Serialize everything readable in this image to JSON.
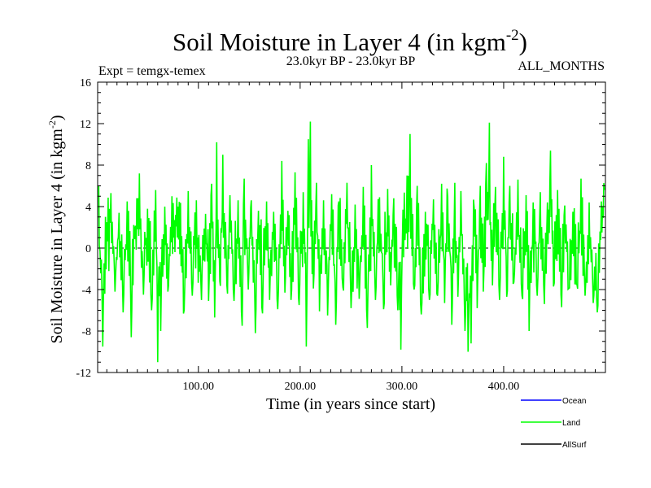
{
  "chart_data": {
    "type": "line",
    "title": "Soil Moisture in Layer 4 (in kgm",
    "title_sup": "-2",
    "title_close": ")",
    "subtitle": "23.0kyr BP - 23.0kyr BP",
    "expt_label": "Expt = temgx-temex",
    "period_label": "ALL_MONTHS",
    "xlabel": "Time (in years since start)",
    "ylabel": "Soil Moisture in Layer 4 (in kgm",
    "ylabel_sup": "-2",
    "ylabel_close": ")",
    "xlim": [
      1,
      500
    ],
    "ylim": [
      -12,
      16
    ],
    "xticks": [
      100,
      200,
      300,
      400
    ],
    "xtick_labels": [
      "100.00",
      "200.00",
      "300.00",
      "400.00"
    ],
    "yticks": [
      -12,
      -8,
      -4,
      0,
      4,
      8,
      12,
      16
    ],
    "ytick_labels": [
      "-12",
      "-8",
      "-4",
      "0",
      "4",
      "8",
      "12",
      "16"
    ],
    "zero_line": 0,
    "series": [
      {
        "name": "Ocean",
        "color": "#0000ff",
        "values": []
      },
      {
        "name": "Land",
        "color": "#00ff00",
        "peak_points": [
          [
            2,
            6.0
          ],
          [
            6,
            -9.5
          ],
          [
            10,
            2.5
          ],
          [
            14,
            5.3
          ],
          [
            18,
            -4.2
          ],
          [
            22,
            3.4
          ],
          [
            26,
            -6.2
          ],
          [
            30,
            4.5
          ],
          [
            34,
            -8.6
          ],
          [
            37,
            2.0
          ],
          [
            42,
            7.2
          ],
          [
            46,
            -4.5
          ],
          [
            50,
            3.8
          ],
          [
            54,
            -6.0
          ],
          [
            58,
            5.6
          ],
          [
            60,
            -11.0
          ],
          [
            63,
            -8.0
          ],
          [
            67,
            4.0
          ],
          [
            70,
            -4.2
          ],
          [
            74,
            5.0
          ],
          [
            80,
            4.0
          ],
          [
            86,
            -6.0
          ],
          [
            90,
            5.5
          ],
          [
            94,
            -4.6
          ],
          [
            98,
            4.6
          ],
          [
            103,
            -5.0
          ],
          [
            107,
            3.3
          ],
          [
            110,
            -5.1
          ],
          [
            113,
            6.2
          ],
          [
            116,
            -6.7
          ],
          [
            118,
            10.2
          ],
          [
            121,
            -3.2
          ],
          [
            124,
            9.0
          ],
          [
            128,
            -3.6
          ],
          [
            131,
            5.1
          ],
          [
            135,
            -5.1
          ],
          [
            139,
            4.6
          ],
          [
            143,
            -7.5
          ],
          [
            145,
            6.7
          ],
          [
            149,
            -4.0
          ],
          [
            152,
            4.6
          ],
          [
            156,
            -8.2
          ],
          [
            159,
            3.6
          ],
          [
            163,
            -6.3
          ],
          [
            167,
            4.5
          ],
          [
            170,
            -5.0
          ],
          [
            174,
            3.5
          ],
          [
            178,
            -5.9
          ],
          [
            182,
            8.4
          ],
          [
            185,
            -4.3
          ],
          [
            188,
            3.6
          ],
          [
            191,
            -5.0
          ],
          [
            195,
            7.3
          ],
          [
            199,
            -5.5
          ],
          [
            203,
            5.4
          ],
          [
            206,
            -9.5
          ],
          [
            208,
            10.5
          ],
          [
            210,
            12.2
          ],
          [
            213,
            -3.9
          ],
          [
            216,
            6.3
          ],
          [
            219,
            -6.1
          ],
          [
            223,
            4.6
          ],
          [
            227,
            -6.5
          ],
          [
            231,
            5.2
          ],
          [
            235,
            -7.4
          ],
          [
            238,
            4.5
          ],
          [
            242,
            -3.8
          ],
          [
            246,
            6.3
          ],
          [
            250,
            -5.8
          ],
          [
            254,
            4.2
          ],
          [
            258,
            -4.9
          ],
          [
            262,
            5.9
          ],
          [
            266,
            -7.7
          ],
          [
            270,
            8.0
          ],
          [
            274,
            -5.0
          ],
          [
            278,
            4.9
          ],
          [
            282,
            -5.9
          ],
          [
            286,
            5.7
          ],
          [
            289,
            -3.6
          ],
          [
            292,
            4.8
          ],
          [
            296,
            -6.0
          ],
          [
            299,
            -9.8
          ],
          [
            301,
            3.7
          ],
          [
            305,
            7.0
          ],
          [
            308,
            11.0
          ],
          [
            312,
            -4.0
          ],
          [
            315,
            6.0
          ],
          [
            319,
            -6.4
          ],
          [
            323,
            3.5
          ],
          [
            327,
            -5.0
          ],
          [
            331,
            4.7
          ],
          [
            335,
            -4.6
          ],
          [
            339,
            6.2
          ],
          [
            342,
            -5.3
          ],
          [
            345,
            4.9
          ],
          [
            349,
            -7.4
          ],
          [
            352,
            6.3
          ],
          [
            355,
            -4.7
          ],
          [
            358,
            5.5
          ],
          [
            362,
            -8.0
          ],
          [
            365,
            -10.0
          ],
          [
            368,
            -9.2
          ],
          [
            371,
            3.9
          ],
          [
            374,
            -5.8
          ],
          [
            377,
            6.0
          ],
          [
            380,
            -4.2
          ],
          [
            383,
            8.2
          ],
          [
            386,
            12.1
          ],
          [
            389,
            -3.6
          ],
          [
            392,
            5.9
          ],
          [
            396,
            -5.0
          ],
          [
            400,
            8.8
          ],
          [
            403,
            -4.7
          ],
          [
            406,
            6.0
          ],
          [
            410,
            -3.3
          ],
          [
            414,
            6.6
          ],
          [
            418,
            -4.6
          ],
          [
            422,
            5.1
          ],
          [
            425,
            -8.0
          ],
          [
            429,
            4.4
          ],
          [
            433,
            -4.6
          ],
          [
            436,
            5.4
          ],
          [
            440,
            -5.4
          ],
          [
            443,
            4.4
          ],
          [
            446,
            9.4
          ],
          [
            449,
            -3.7
          ],
          [
            453,
            5.6
          ],
          [
            457,
            -5.7
          ],
          [
            460,
            4.1
          ],
          [
            464,
            -3.9
          ],
          [
            468,
            3.5
          ],
          [
            472,
            -3.5
          ],
          [
            476,
            6.7
          ],
          [
            480,
            -4.6
          ],
          [
            484,
            4.4
          ],
          [
            488,
            -5.3
          ],
          [
            492,
            -6.2
          ],
          [
            496,
            4.5
          ],
          [
            499,
            5.6
          ]
        ]
      },
      {
        "name": "AllSurf",
        "color": "#000000",
        "values": []
      }
    ],
    "legend": {
      "placement": "bottom-right",
      "entries": [
        {
          "label": "Ocean",
          "color": "#0000ff"
        },
        {
          "label": "Land",
          "color": "#00ff00"
        },
        {
          "label": "AllSurf",
          "color": "#000000"
        }
      ]
    }
  }
}
